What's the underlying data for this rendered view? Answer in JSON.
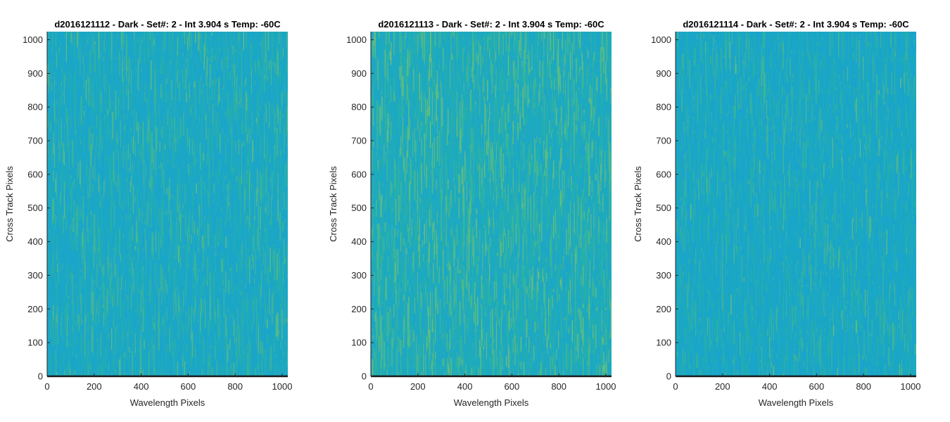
{
  "chart_data": [
    {
      "type": "heatmap",
      "title": "d2016121112 - Dark - Set#: 2 - Int 3.904 s Temp: -60C",
      "xlabel": "Wavelength Pixels",
      "ylabel": "Cross Track Pixels",
      "xlim": [
        0,
        1024
      ],
      "ylim": [
        0,
        1024
      ],
      "x_ticks": [
        "0",
        "200",
        "400",
        "600",
        "800",
        "1000"
      ],
      "y_ticks": [
        "0",
        "100",
        "200",
        "300",
        "400",
        "500",
        "600",
        "700",
        "800",
        "900",
        "1000"
      ],
      "colormap": [
        "#1ba3cf",
        "#18aac0",
        "#2fb39a",
        "#7cc36a"
      ],
      "base_color": "#1da8c4",
      "brightness": 0.35
    },
    {
      "type": "heatmap",
      "title": "d2016121113 - Dark - Set#: 2 - Int 3.904 s Temp: -60C",
      "xlabel": "Wavelength Pixels",
      "ylabel": "Cross Track Pixels",
      "xlim": [
        0,
        1024
      ],
      "ylim": [
        0,
        1024
      ],
      "x_ticks": [
        "0",
        "200",
        "400",
        "600",
        "800",
        "1000"
      ],
      "y_ticks": [
        "0",
        "100",
        "200",
        "300",
        "400",
        "500",
        "600",
        "700",
        "800",
        "900",
        "1000"
      ],
      "colormap": [
        "#1ba3cf",
        "#18aac0",
        "#2fb39a",
        "#7cc36a"
      ],
      "base_color": "#22adb8",
      "brightness": 0.55
    },
    {
      "type": "heatmap",
      "title": "d2016121114 - Dark - Set#: 2 - Int 3.904 s Temp: -60C",
      "xlabel": "Wavelength Pixels",
      "ylabel": "Cross Track Pixels",
      "xlim": [
        0,
        1024
      ],
      "ylim": [
        0,
        1024
      ],
      "x_ticks": [
        "0",
        "200",
        "400",
        "600",
        "800",
        "1000"
      ],
      "y_ticks": [
        "0",
        "100",
        "200",
        "300",
        "400",
        "500",
        "600",
        "700",
        "800",
        "900",
        "1000"
      ],
      "colormap": [
        "#1ba3cf",
        "#18aac0",
        "#2fb39a",
        "#7cc36a"
      ],
      "base_color": "#1aa6c8",
      "brightness": 0.25
    }
  ]
}
